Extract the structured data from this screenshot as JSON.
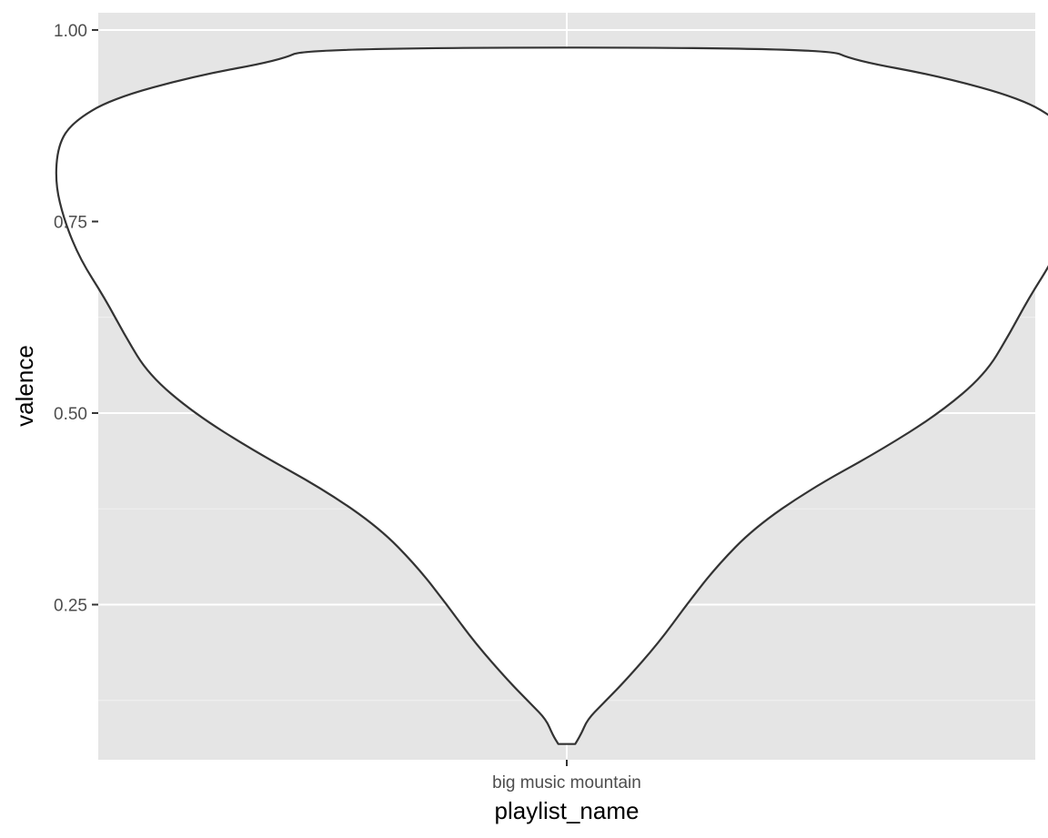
{
  "chart_data": {
    "type": "violin",
    "title": "",
    "xlabel": "playlist_name",
    "ylabel": "valence",
    "categories": [
      "big music mountain"
    ],
    "ylim": [
      0.0475,
      1.0225
    ],
    "y_ticks": [
      0.25,
      0.5,
      0.75,
      1.0
    ],
    "y_tick_labels": [
      "0.25",
      "0.50",
      "0.75",
      "1.00"
    ],
    "grid": true,
    "legend": "none",
    "colors": {
      "panel_background": "#e5e5e5",
      "grid_major": "#ffffff",
      "grid_minor": "#f2f2f2",
      "violin_fill": "#ffffff",
      "violin_outline": "#333333",
      "tick_mark": "#333333"
    },
    "violins": [
      {
        "category": "big music mountain",
        "y_min": 0.068,
        "y_max": 0.977,
        "density_profile": [
          {
            "y": 0.068,
            "half_width": 0.009
          },
          {
            "y": 0.08,
            "half_width": 0.015
          },
          {
            "y": 0.1,
            "half_width": 0.022
          },
          {
            "y": 0.12,
            "half_width": 0.038
          },
          {
            "y": 0.15,
            "half_width": 0.062
          },
          {
            "y": 0.2,
            "half_width": 0.098
          },
          {
            "y": 0.25,
            "half_width": 0.128
          },
          {
            "y": 0.3,
            "half_width": 0.16
          },
          {
            "y": 0.35,
            "half_width": 0.2
          },
          {
            "y": 0.4,
            "half_width": 0.259
          },
          {
            "y": 0.45,
            "half_width": 0.333
          },
          {
            "y": 0.5,
            "half_width": 0.398
          },
          {
            "y": 0.55,
            "half_width": 0.446
          },
          {
            "y": 0.6,
            "half_width": 0.471
          },
          {
            "y": 0.65,
            "half_width": 0.493
          },
          {
            "y": 0.7,
            "half_width": 0.519
          },
          {
            "y": 0.75,
            "half_width": 0.536
          },
          {
            "y": 0.8,
            "half_width": 0.546
          },
          {
            "y": 0.85,
            "half_width": 0.543
          },
          {
            "y": 0.88,
            "half_width": 0.527
          },
          {
            "y": 0.91,
            "half_width": 0.486
          },
          {
            "y": 0.94,
            "half_width": 0.397
          },
          {
            "y": 0.96,
            "half_width": 0.307
          },
          {
            "y": 0.977,
            "half_width": 0.276
          }
        ]
      }
    ]
  }
}
